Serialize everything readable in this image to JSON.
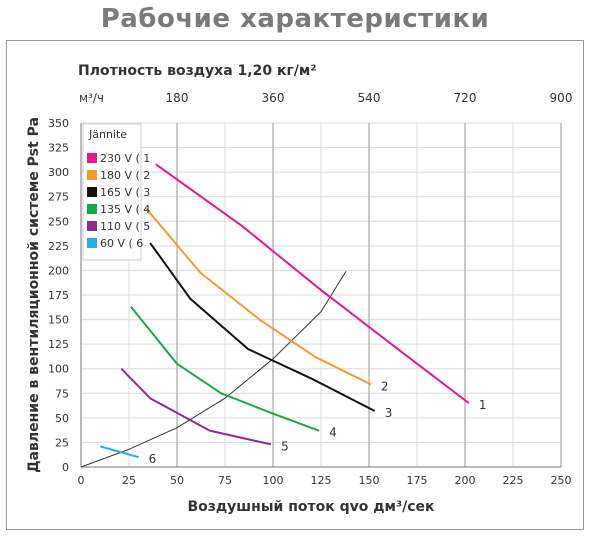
{
  "page_title": "Рабочие характеристики",
  "density_label": "Плотность воздуха 1,20 кг/м²",
  "chart_data": {
    "type": "line",
    "title": "Рабочие характеристики",
    "subtitle": "Плотность воздуха 1,20 кг/м²",
    "xlabel": "Воздушный поток qvo дм³/сек",
    "ylabel": "Давление в вентиляционной системе Pst Pa",
    "x2label": "м³/ч",
    "xlim": [
      0,
      250
    ],
    "ylim": [
      0,
      350
    ],
    "x_ticks": [
      0,
      25,
      50,
      75,
      100,
      125,
      150,
      175,
      200,
      225,
      250
    ],
    "y_ticks": [
      0,
      25,
      50,
      75,
      100,
      125,
      150,
      175,
      200,
      225,
      250,
      275,
      300,
      325,
      350
    ],
    "x2_ticks": [
      180,
      360,
      540,
      720,
      900
    ],
    "grid": true,
    "legend_title": "Jännite",
    "legend_position": "top-left",
    "series": [
      {
        "name": "230 V ( 1",
        "curve_label": "1",
        "color": "#e5198c",
        "points": [
          [
            39,
            308
          ],
          [
            84,
            245
          ],
          [
            125,
            180
          ],
          [
            165,
            120
          ],
          [
            202,
            65
          ]
        ]
      },
      {
        "name": "180 V ( 2",
        "curve_label": "2",
        "color": "#f39a2d",
        "points": [
          [
            34,
            263
          ],
          [
            62,
            198
          ],
          [
            93,
            150
          ],
          [
            122,
            112
          ],
          [
            151,
            84
          ]
        ]
      },
      {
        "name": "165 V ( 3",
        "curve_label": "3",
        "color": "#111111",
        "points": [
          [
            36,
            228
          ],
          [
            57,
            171
          ],
          [
            87,
            120
          ],
          [
            120,
            90
          ],
          [
            153,
            57
          ]
        ]
      },
      {
        "name": "135 V ( 4",
        "curve_label": "4",
        "color": "#1aa64a",
        "points": [
          [
            26,
            163
          ],
          [
            50,
            105
          ],
          [
            73,
            75
          ],
          [
            99,
            55
          ],
          [
            124,
            37
          ]
        ]
      },
      {
        "name": "110 V ( 5",
        "curve_label": "5",
        "color": "#8e2d8e",
        "points": [
          [
            21,
            100
          ],
          [
            36,
            70
          ],
          [
            67,
            37
          ],
          [
            99,
            23
          ]
        ]
      },
      {
        "name": "60 V ( 6",
        "curve_label": "6",
        "color": "#1eb0e6",
        "points": [
          [
            10,
            21
          ],
          [
            30,
            10
          ]
        ]
      }
    ],
    "system_curve": {
      "color": "#333333",
      "points": [
        [
          0,
          0
        ],
        [
          25,
          18
        ],
        [
          50,
          40
        ],
        [
          75,
          70
        ],
        [
          100,
          110
        ],
        [
          125,
          158
        ],
        [
          138,
          199
        ]
      ]
    }
  }
}
